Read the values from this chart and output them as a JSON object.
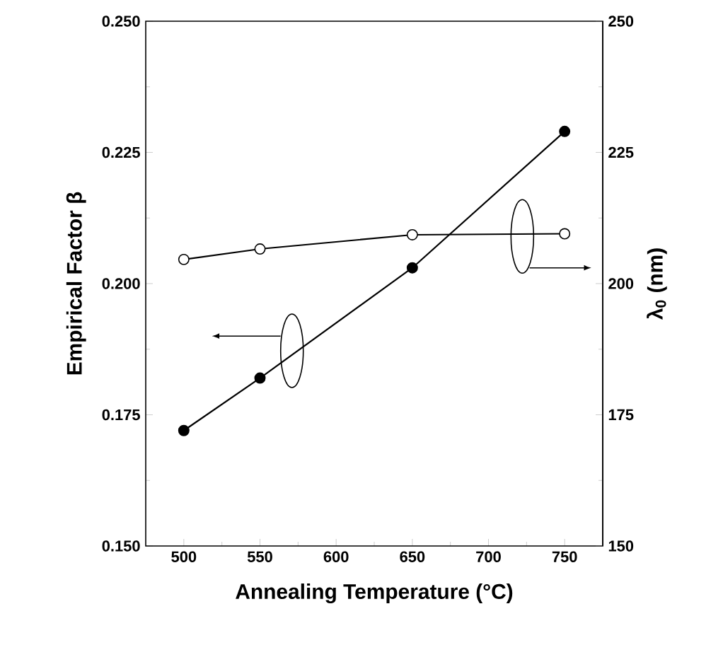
{
  "chart_data": {
    "type": "line",
    "xlabel": "Annealing Temperature (°C)",
    "ylabel": "Empirical Factor β",
    "y2label": "λ$_{0}$ (nm)",
    "x": [
      500,
      550,
      650,
      750
    ],
    "xlim": [
      475,
      775
    ],
    "xticks": [
      500,
      550,
      600,
      650,
      700,
      750
    ],
    "ylim": [
      0.15,
      0.25
    ],
    "yticks": [
      {
        "value": 0.15,
        "label": "0.150"
      },
      {
        "value": 0.175,
        "label": "0.175"
      },
      {
        "value": 0.2,
        "label": "0.200"
      },
      {
        "value": 0.225,
        "label": "0.225"
      },
      {
        "value": 0.25,
        "label": "0.250"
      }
    ],
    "y2lim": [
      150,
      250
    ],
    "y2ticks": [
      150,
      175,
      200,
      225,
      250
    ],
    "marker": "circle",
    "line_style": "solid",
    "series": [
      {
        "color": "#000000",
        "values": [
          0.172,
          0.182,
          0.203,
          0.229
        ]
      },
      {
        "color": "#000000",
        "axis": "y2",
        "values": [
          204.6,
          206.6,
          209.3,
          209.5
        ]
      }
    ]
  }
}
